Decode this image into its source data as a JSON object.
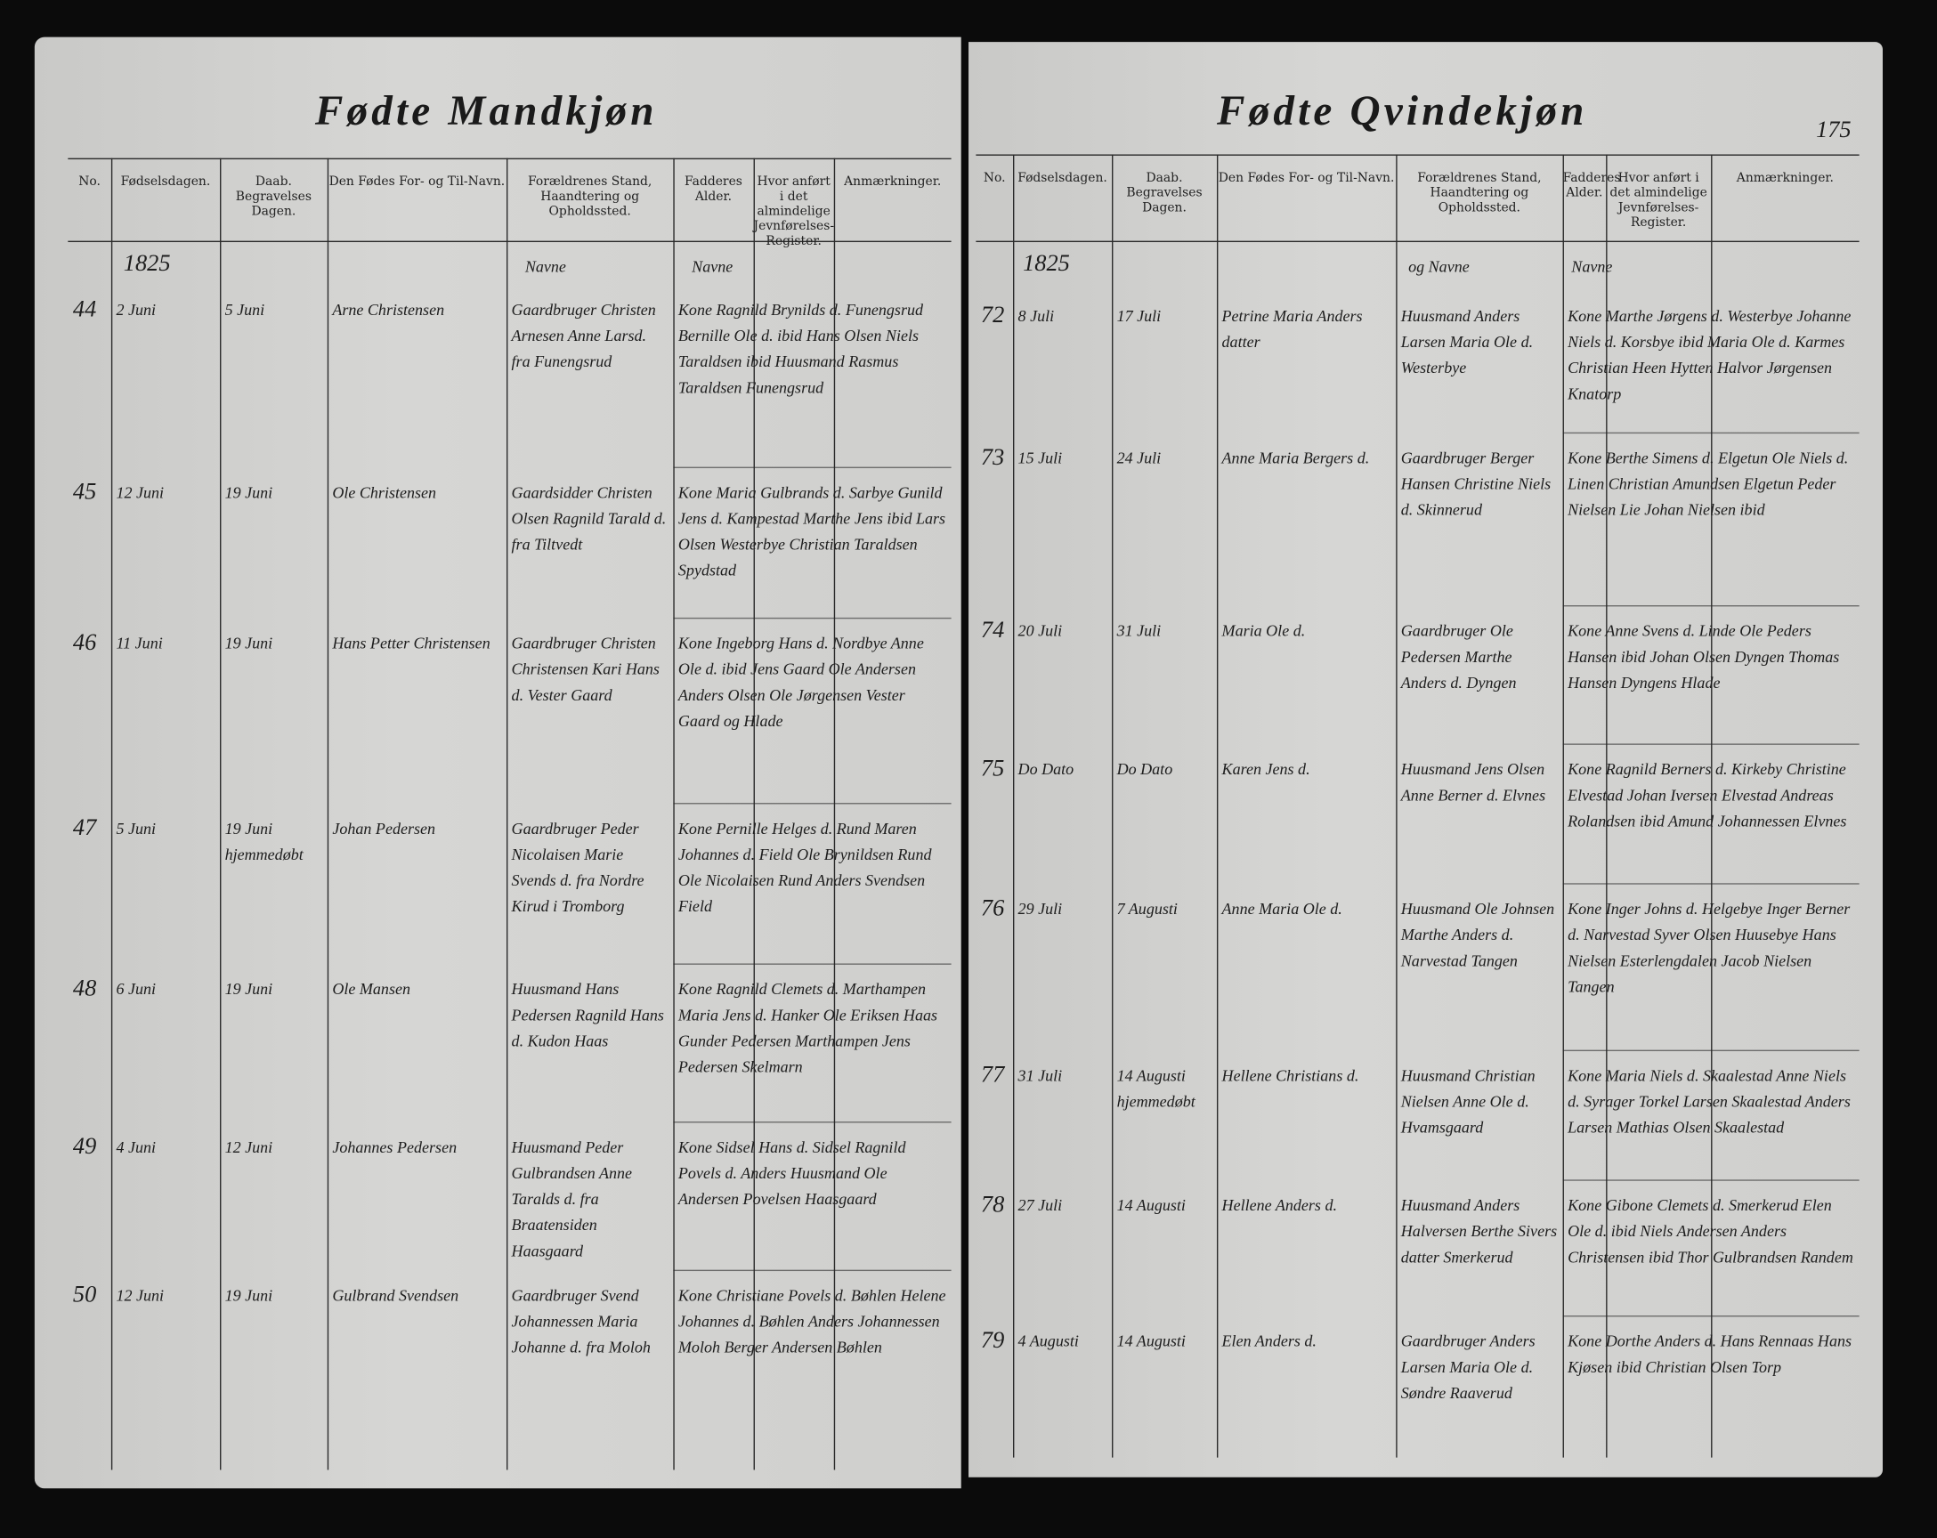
{
  "left_page": {
    "title": "Fødte Mandkjøn",
    "year": "1825",
    "parents_note": "Navne",
    "sponsors_note": "Navne",
    "headers": [
      "No.",
      "Fødselsdagen.",
      "Daab. Begravelses Dagen.",
      "Den Fødes For- og Til-Navn.",
      "Forældrenes Stand, Haandtering og Opholdssted.",
      "Fadderes Alder.",
      "Hvor anført i det almindelige Jevnførelses-Register.",
      "Anmærkninger."
    ],
    "rows": [
      [
        "44",
        "2 Juni",
        "5 Juni",
        "Arne Christensen",
        "Gaardbruger Christen Arnesen Anne Larsd. fra Funengsrud",
        "Kone Ragnild Brynilds d. Funengsrud Bernille Ole d. ibid Hans Olsen Niels Taraldsen ibid Huusmand Rasmus Taraldsen Funengsrud"
      ],
      [
        "45",
        "12 Juni",
        "19 Juni",
        "Ole Christensen",
        "Gaardsidder Christen Olsen Ragnild Tarald d. fra Tiltvedt",
        "Kone Maria Gulbrands d. Sarbye Gunild Jens d. Kampestad Marthe Jens ibid Lars Olsen Westerbye Christian Taraldsen Spydstad"
      ],
      [
        "46",
        "11 Juni",
        "19 Juni",
        "Hans Petter Christensen",
        "Gaardbruger Christen Christensen Kari Hans d. Vester Gaard",
        "Kone Ingeborg Hans d. Nordbye Anne Ole d. ibid Jens Gaard Ole Andersen Anders Olsen Ole Jørgensen Vester Gaard og Hlade"
      ],
      [
        "47",
        "5 Juni",
        "19 Juni hjemmedøbt",
        "Johan Pedersen",
        "Gaardbruger Peder Nicolaisen Marie Svends d. fra Nordre Kirud i Tromborg",
        "Kone Pernille Helges d. Rund Maren Johannes d. Field Ole Brynildsen Rund Ole Nicolaisen Rund Anders Svendsen Field"
      ],
      [
        "48",
        "6 Juni",
        "19 Juni",
        "Ole Mansen",
        "Huusmand Hans Pedersen Ragnild Hans d. Kudon Haas",
        "Kone Ragnild Clemets d. Marthampen Maria Jens d. Hanker Ole Eriksen Haas Gunder Pedersen Marthampen Jens Pedersen Skelmarn"
      ],
      [
        "49",
        "4 Juni",
        "12 Juni",
        "Johannes Pedersen",
        "Huusmand Peder Gulbrandsen Anne Taralds d. fra Braatensiden Haasgaard",
        "Kone Sidsel Hans d. Sidsel Ragnild Povels d. Anders Huusmand Ole Andersen Povelsen Haasgaard"
      ],
      [
        "50",
        "12 Juni",
        "19 Juni",
        "Gulbrand Svendsen",
        "Gaardbruger Svend Johannessen Maria Johanne d. fra Moloh",
        "Kone Christiane Povels d. Bøhlen Helene Johannes d. Bøhlen Anders Johannessen Moloh Berger Andersen Bøhlen"
      ]
    ]
  },
  "right_page": {
    "title": "Fødte Qvindekjøn",
    "page_number": "175",
    "year": "1825",
    "parents_note": "og Navne",
    "sponsors_note": "Navne",
    "headers": [
      "No.",
      "Fødselsdagen.",
      "Daab. Begravelses Dagen.",
      "Den Fødes For- og Til-Navn.",
      "Forældrenes Stand, Haandtering og Opholdssted.",
      "Fadderes Alder.",
      "Hvor anført i det almindelige Jevnførelses-Register.",
      "Anmærkninger."
    ],
    "rows": [
      [
        "72",
        "8 Juli",
        "17 Juli",
        "Petrine Maria Anders datter",
        "Huusmand Anders Larsen Maria Ole d. Westerbye",
        "Kone Marthe Jørgens d. Westerbye Johanne Niels d. Korsbye ibid Maria Ole d. Karmes Christian Heen Hytten Halvor Jørgensen Knatorp"
      ],
      [
        "73",
        "15 Juli",
        "24 Juli",
        "Anne Maria Bergers d.",
        "Gaardbruger Berger Hansen Christine Niels d. Skinnerud",
        "Kone Berthe Simens d. Elgetun Ole Niels d. Linen Christian Amundsen Elgetun Peder Nielsen Lie Johan Nielsen ibid"
      ],
      [
        "74",
        "20 Juli",
        "31 Juli",
        "Maria Ole d.",
        "Gaardbruger Ole Pedersen Marthe Anders d. Dyngen",
        "Kone Anne Svens d. Linde Ole Peders Hansen ibid Johan Olsen Dyngen Thomas Hansen Dyngens Hlade"
      ],
      [
        "75",
        "Do Dato",
        "Do Dato",
        "Karen Jens d.",
        "Huusmand Jens Olsen Anne Berner d. Elvnes",
        "Kone Ragnild Berners d. Kirkeby Christine Elvestad Johan Iversen Elvestad Andreas Rolandsen ibid Amund Johannessen Elvnes"
      ],
      [
        "76",
        "29 Juli",
        "7 Augusti",
        "Anne Maria Ole d.",
        "Huusmand Ole Johnsen Marthe Anders d. Narvestad Tangen",
        "Kone Inger Johns d. Helgebye Inger Berner d. Narvestad Syver Olsen Huusebye Hans Nielsen Esterlengdalen Jacob Nielsen Tangen"
      ],
      [
        "77",
        "31 Juli",
        "14 Augusti hjemmedøbt",
        "Hellene Christians d.",
        "Huusmand Christian Nielsen Anne Ole d. Hvamsgaard",
        "Kone Maria Niels d. Skaalestad Anne Niels d. Syrager Torkel Larsen Skaalestad Anders Larsen Mathias Olsen Skaalestad"
      ],
      [
        "78",
        "27 Juli",
        "14 Augusti",
        "Hellene Anders d.",
        "Huusmand Anders Halversen Berthe Sivers datter Smerkerud",
        "Kone Gibone Clemets d. Smerkerud Elen Ole d. ibid Niels Andersen Anders Christensen ibid Thor Gulbrandsen Randem"
      ],
      [
        "79",
        "4 Augusti",
        "14 Augusti",
        "Elen Anders d.",
        "Gaardbruger Anders Larsen Maria Ole d. Søndre Raaverud",
        "Kone Dorthe Anders d. Hans Rennaas Hans Kjøsen ibid Christian Olsen Torp"
      ]
    ]
  }
}
